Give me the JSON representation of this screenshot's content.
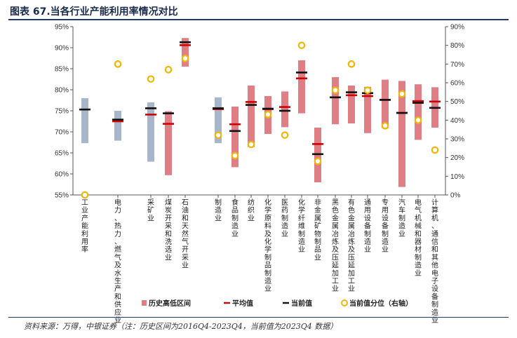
{
  "title": "图表 67.当各行业产能利用率情况对比",
  "source": "资料来源：万得，中银证券（注：历史区间为2016Q4-2023Q4，当前值为2023Q4 数据）",
  "chart_data": {
    "type": "bar",
    "title": "图表 67.当各行业产能利用率情况对比",
    "y_left": {
      "range": [
        55,
        95
      ],
      "ticks": [
        "55%",
        "60%",
        "65%",
        "70%",
        "75%",
        "80%",
        "85%",
        "90%",
        "95%"
      ]
    },
    "y_right": {
      "range": [
        0,
        90
      ],
      "ticks": [
        "0%",
        "10%",
        "20%",
        "30%",
        "40%",
        "50%",
        "60%",
        "70%",
        "80%",
        "90%"
      ],
      "label": "当前值分位（右轴）"
    },
    "grid": false,
    "legend_position": "bottom",
    "legend": [
      "历史高低区间",
      "平均值",
      "当前值",
      "当前值分位（右轴）"
    ],
    "colors": {
      "aggregate_range": "#a8b6cb",
      "industry_range": "#e07e86",
      "average": "#cc0000",
      "current": "#111111",
      "percentile": "#f2b705"
    },
    "categories": [
      "工业产能利用率",
      "电力、热力、燃气及水生产和供应业",
      "采矿业",
      "煤炭开采和洗选业",
      "石油和天然气开采业",
      "制造业",
      "食品制造业",
      "纺织业",
      "化学原料及化学制品制造业",
      "医药制造业",
      "化学纤维制造业",
      "非金属矿物制品业",
      "黑色金属冶炼及压延加工业",
      "有色金属冶炼及压延加工业",
      "通用设备制造业",
      "专用设备制造业",
      "汽车制造业",
      "电气机械和器材制造业",
      "计算机、通信和其他电子设备制造业"
    ],
    "aggregate": [
      true,
      true,
      true,
      false,
      false,
      true,
      false,
      false,
      false,
      false,
      false,
      false,
      false,
      false,
      false,
      false,
      false,
      false,
      false
    ],
    "series": [
      {
        "name": "历史区间高值",
        "values": [
          78.0,
          75.0,
          77.0,
          74.9,
          92.3,
          78.2,
          76.0,
          81.0,
          78.5,
          79.6,
          87.0,
          71.0,
          83.0,
          81.0,
          80.7,
          82.4,
          82.1,
          81.3,
          80.6
        ]
      },
      {
        "name": "历史区间低值",
        "values": [
          67.3,
          67.9,
          62.9,
          59.7,
          85.5,
          67.3,
          61.6,
          66.4,
          69.5,
          71.1,
          74.4,
          58.0,
          71.8,
          72.0,
          69.7,
          70.9,
          56.9,
          68.1,
          71.0
        ]
      },
      {
        "name": "平均值",
        "values": [
          75.3,
          72.5,
          74.1,
          71.9,
          90.6,
          75.4,
          71.8,
          77.1,
          75.4,
          75.9,
          82.7,
          67.1,
          78.2,
          78.7,
          78.5,
          77.6,
          74.5,
          77.3,
          77.2
        ]
      },
      {
        "name": "当前值",
        "values": [
          75.3,
          72.9,
          75.6,
          74.4,
          91.3,
          75.6,
          70.2,
          76.4,
          75.5,
          75.0,
          84.1,
          64.7,
          78.2,
          79.4,
          79.2,
          77.6,
          74.5,
          76.9,
          75.7
        ]
      },
      {
        "name": "当前值分位（右轴）",
        "values": [
          0.0,
          70.0,
          62.0,
          67.0,
          73.0,
          32.0,
          21.0,
          27.0,
          43.0,
          32.0,
          80.0,
          18.0,
          56.0,
          70.0,
          56.0,
          37.0,
          54.0,
          40.0,
          24.0
        ]
      }
    ]
  }
}
